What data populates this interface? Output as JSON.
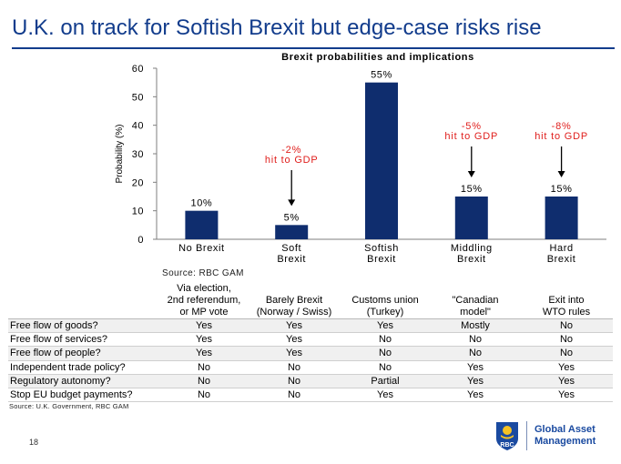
{
  "title": "U.K. on track for Softish Brexit but edge-case risks rise",
  "chart_data": {
    "type": "bar",
    "title": "Brexit probabilities and implications",
    "ylabel": "Probability (%)",
    "xlabel": "",
    "ylim": [
      0,
      60
    ],
    "yticks": [
      "0",
      "10",
      "20",
      "30",
      "40",
      "50",
      "60"
    ],
    "categories": [
      "No Brexit",
      "Soft\nBrexit",
      "Softish\nBrexit",
      "Middling\nBrexit",
      "Hard\nBrexit"
    ],
    "values": [
      10,
      5,
      55,
      15,
      15
    ],
    "data_labels": [
      "10%",
      "5%",
      "55%",
      "15%",
      "15%"
    ],
    "annotations": [
      {
        "category_index": 1,
        "lines": [
          "-2%",
          "hit to GDP"
        ]
      },
      {
        "category_index": 3,
        "lines": [
          "-5%",
          "hit to GDP"
        ]
      },
      {
        "category_index": 4,
        "lines": [
          "-8%",
          "hit to GDP"
        ]
      }
    ],
    "colors": {
      "bar": "#0f2d6e",
      "annotation": "#e0201e",
      "axis": "#7f7f7f"
    },
    "grid": false
  },
  "chart_source": "Source: RBC GAM",
  "table": {
    "columns": [
      {
        "label": "Via election,\n2nd referendum,\nor MP vote"
      },
      {
        "label": "Barely Brexit\n(Norway / Swiss)"
      },
      {
        "label": "Customs union\n(Turkey)"
      },
      {
        "label": "\"Canadian\nmodel\""
      },
      {
        "label": "Exit into\nWTO rules"
      }
    ],
    "rows": [
      {
        "label": "Free flow of goods?",
        "cells": [
          "Yes",
          "Yes",
          "Yes",
          "Mostly",
          "No"
        ]
      },
      {
        "label": "Free flow of services?",
        "cells": [
          "Yes",
          "Yes",
          "No",
          "No",
          "No"
        ]
      },
      {
        "label": "Free flow of people?",
        "cells": [
          "Yes",
          "Yes",
          "No",
          "No",
          "No"
        ]
      },
      {
        "label": "Independent trade policy?",
        "cells": [
          "No",
          "No",
          "No",
          "Yes",
          "Yes"
        ]
      },
      {
        "label": "Regulatory autonomy?",
        "cells": [
          "No",
          "No",
          "Partial",
          "Yes",
          "Yes"
        ]
      },
      {
        "label": "Stop EU budget payments?",
        "cells": [
          "No",
          "No",
          "Yes",
          "Yes",
          "Yes"
        ]
      }
    ]
  },
  "table_source": "Source: U.K. Government, RBC GAM",
  "page_number": "18",
  "logo": {
    "mark": "RBC",
    "line1": "Global Asset",
    "line2": "Management"
  }
}
